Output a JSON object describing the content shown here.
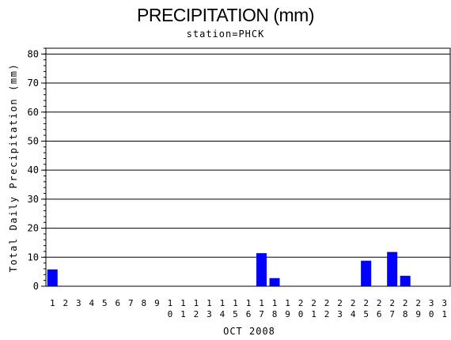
{
  "chart_data": {
    "type": "bar",
    "title": "PRECIPITATION (mm)",
    "subtitle": "station=PHCK",
    "xlabel": "OCT 2008",
    "ylabel": "Total Daily Precipitation (mm)",
    "ylim": [
      0,
      82
    ],
    "yticks": [
      0,
      10,
      20,
      30,
      40,
      50,
      60,
      70,
      80
    ],
    "grid": true,
    "bar_color": "#0000ff",
    "categories": [
      "1",
      "2",
      "3",
      "4",
      "5",
      "6",
      "7",
      "8",
      "9",
      "10",
      "11",
      "12",
      "13",
      "14",
      "15",
      "16",
      "17",
      "18",
      "19",
      "20",
      "21",
      "22",
      "23",
      "24",
      "25",
      "26",
      "27",
      "28",
      "29",
      "30",
      "31"
    ],
    "values": [
      5.8,
      0,
      0,
      0,
      0,
      0,
      0,
      0,
      0,
      0,
      0,
      0,
      0,
      0,
      0,
      0,
      11.4,
      2.8,
      0,
      0,
      0,
      0,
      0,
      0,
      8.8,
      0,
      11.8,
      3.6,
      0,
      0,
      0
    ]
  }
}
